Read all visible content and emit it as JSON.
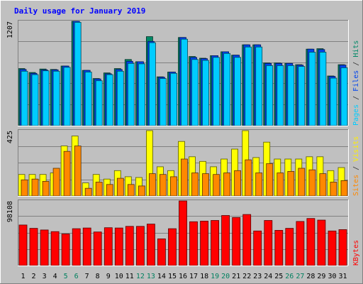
{
  "chart_data": {
    "type": "bar",
    "title": "Daily usage for January 2019",
    "days": [
      "1",
      "2",
      "3",
      "4",
      "5",
      "6",
      "7",
      "8",
      "9",
      "10",
      "11",
      "12",
      "13",
      "14",
      "15",
      "16",
      "17",
      "18",
      "19",
      "20",
      "21",
      "22",
      "23",
      "24",
      "25",
      "26",
      "27",
      "28",
      "29",
      "30",
      "31"
    ],
    "weekend_days": [
      "5",
      "6",
      "12",
      "13",
      "19",
      "20",
      "26",
      "27"
    ],
    "panels": [
      {
        "id": "top",
        "max_label": "1207",
        "ymax": 1207,
        "legend": [
          {
            "text": "Pages",
            "color": "#00ccff"
          },
          {
            "text": " / ",
            "color": "#333333"
          },
          {
            "text": "Files",
            "color": "#0044ee"
          },
          {
            "text": " / ",
            "color": "#333333"
          },
          {
            "text": "Hits",
            "color": "#008866"
          }
        ],
        "series": [
          {
            "name": "Hits",
            "color": "#008866",
            "values": [
              660,
              615,
              655,
              650,
              690,
              1207,
              640,
              545,
              610,
              660,
              765,
              740,
              1030,
              565,
              620,
              1020,
              800,
              780,
              810,
              855,
              815,
              935,
              935,
              725,
              725,
              720,
              705,
              885,
              890,
              575,
              705
            ]
          },
          {
            "name": "Files",
            "color": "#0044ee",
            "values": [
              650,
              605,
              645,
              645,
              690,
              1207,
              640,
              540,
              600,
              650,
              745,
              740,
              975,
              560,
              620,
              1020,
              790,
              775,
              810,
              855,
              815,
              935,
              935,
              720,
              720,
              720,
              700,
              885,
              880,
              570,
              700
            ]
          },
          {
            "name": "Pages",
            "color": "#00ccff",
            "values": [
              630,
              590,
              635,
              630,
              675,
              1195,
              620,
              520,
              590,
              630,
              720,
              715,
              960,
              545,
              605,
              1000,
              765,
              755,
              790,
              835,
              790,
              910,
              910,
              695,
              695,
              695,
              685,
              850,
              850,
              550,
              670
            ]
          }
        ]
      },
      {
        "id": "middle",
        "max_label": "425",
        "ymax": 425,
        "legend": [
          {
            "text": "Sites",
            "color": "#ff8800"
          },
          {
            "text": " / ",
            "color": "#333333"
          },
          {
            "text": "Visits",
            "color": "#ffee00"
          }
        ],
        "series": [
          {
            "name": "Visits",
            "color": "#ffff00",
            "values": [
              140,
              140,
              140,
              150,
              325,
              390,
              85,
              140,
              110,
              165,
              125,
              120,
              425,
              190,
              165,
              355,
              255,
              225,
              190,
              240,
              305,
              425,
              250,
              350,
              240,
              240,
              240,
              255,
              255,
              165,
              185
            ]
          },
          {
            "name": "Sites",
            "color": "#ff8800",
            "values": [
              105,
              110,
              95,
              180,
              290,
              325,
              50,
              90,
              75,
              115,
              75,
              65,
              145,
              140,
              125,
              240,
              150,
              145,
              140,
              150,
              165,
              235,
              150,
              210,
              150,
              160,
              180,
              170,
              145,
              90,
              100
            ]
          }
        ]
      },
      {
        "id": "bottom",
        "max_label": "98108",
        "ymax": 98108,
        "legend": [
          {
            "text": "KBytes",
            "color": "#ff0000"
          }
        ],
        "series": [
          {
            "name": "KBytes",
            "color": "#ff0000",
            "values": [
              61600,
              56500,
              54000,
              51500,
              48000,
              56000,
              57000,
              51000,
              57500,
              57000,
              59500,
              59500,
              63000,
              40500,
              56000,
              98108,
              66500,
              67500,
              68500,
              76000,
              73000,
              77500,
              52500,
              68500,
              53500,
              56500,
              67000,
              71500,
              69000,
              52500,
              54500
            ]
          }
        ]
      }
    ],
    "grid": true
  }
}
